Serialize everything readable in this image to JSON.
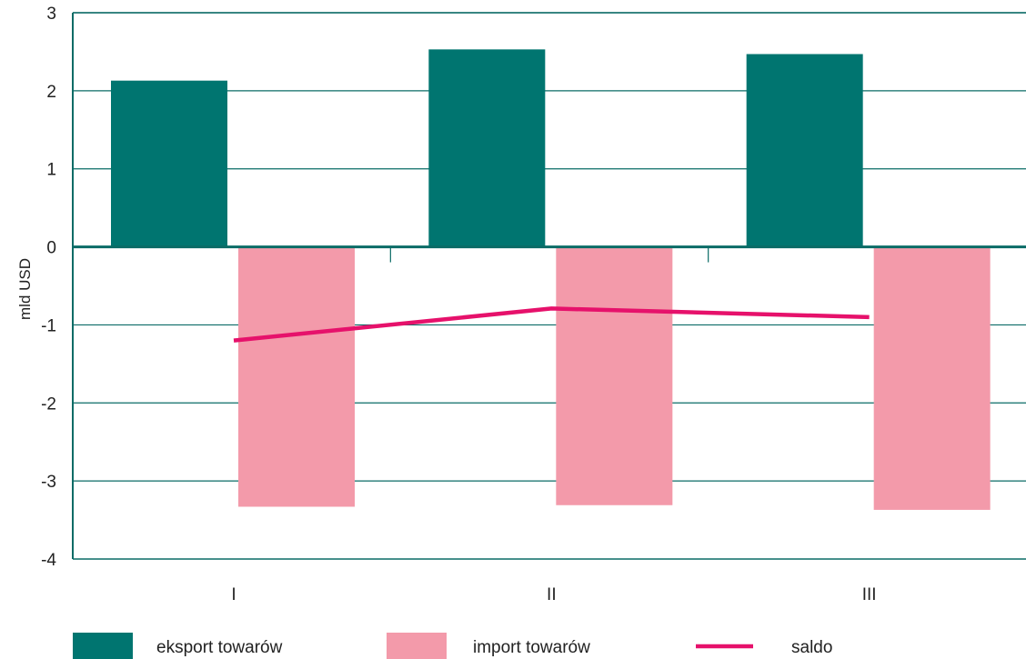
{
  "chart_data": {
    "type": "bar",
    "categories": [
      "I",
      "II",
      "III"
    ],
    "ylabel": "mld USD",
    "ylim": [
      -4,
      3
    ],
    "yticks": [
      3,
      2,
      1,
      0,
      -1,
      -2,
      -3,
      -4
    ],
    "grid": true,
    "legend_position": "bottom",
    "series": [
      {
        "name": "eksport towarów",
        "kind": "bar",
        "color": "#007570",
        "values": [
          2.13,
          2.53,
          2.47
        ]
      },
      {
        "name": "import towarów",
        "kind": "bar",
        "color": "#F39AAA",
        "values": [
          -3.33,
          -3.31,
          -3.37
        ]
      },
      {
        "name": "saldo",
        "kind": "line",
        "color": "#E6116B",
        "values": [
          -1.2,
          -0.79,
          -0.9
        ]
      }
    ]
  }
}
